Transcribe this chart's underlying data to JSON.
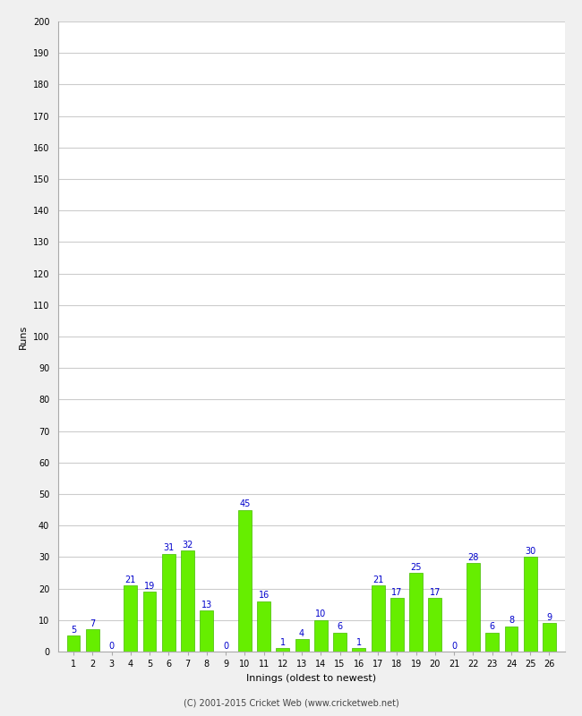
{
  "xlabel": "Innings (oldest to newest)",
  "ylabel": "Runs",
  "innings": [
    1,
    2,
    3,
    4,
    5,
    6,
    7,
    8,
    9,
    10,
    11,
    12,
    13,
    14,
    15,
    16,
    17,
    18,
    19,
    20,
    21,
    22,
    23,
    24,
    25,
    26
  ],
  "values": [
    5,
    7,
    0,
    21,
    19,
    31,
    32,
    13,
    0,
    45,
    16,
    1,
    4,
    10,
    6,
    1,
    21,
    17,
    25,
    17,
    0,
    28,
    6,
    8,
    30,
    9
  ],
  "bar_color": "#66ee00",
  "bar_edge_color": "#44bb00",
  "label_color": "#0000cc",
  "background_color": "#f0f0f0",
  "plot_bg_color": "#ffffff",
  "grid_color": "#cccccc",
  "ylim": [
    0,
    200
  ],
  "yticks": [
    0,
    10,
    20,
    30,
    40,
    50,
    60,
    70,
    80,
    90,
    100,
    110,
    120,
    130,
    140,
    150,
    160,
    170,
    180,
    190,
    200
  ],
  "ylabel_fontsize": 8,
  "xlabel_fontsize": 8,
  "tick_fontsize": 7,
  "label_fontsize": 7,
  "footer": "(C) 2001-2015 Cricket Web (www.cricketweb.net)",
  "footer_fontsize": 7
}
